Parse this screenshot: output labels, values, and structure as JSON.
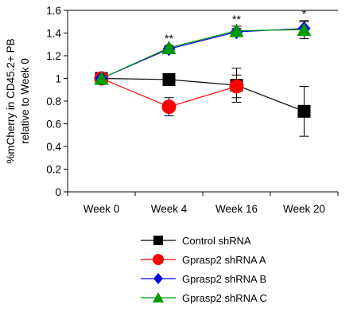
{
  "chart_data": {
    "type": "line",
    "title": "",
    "xlabel": "",
    "ylabel_lines": [
      "%mCherry in CD45.2+ PB",
      "relative to Week 0"
    ],
    "categories": [
      "Week 0",
      "Week 4",
      "Week 16",
      "Week 20"
    ],
    "ylim": [
      0,
      1.6
    ],
    "yticks": [
      "0",
      "0.2",
      "0.4",
      "0.6",
      "0.8",
      "1",
      "1.2",
      "1.4",
      "1.6"
    ],
    "grid": false,
    "legend_position": "bottom",
    "series": [
      {
        "name": "Control shRNA",
        "color": "#000000",
        "marker": "square",
        "values": [
          1.0,
          0.99,
          0.94,
          0.71
        ],
        "errors": [
          0,
          0.02,
          0.15,
          0.22
        ]
      },
      {
        "name": "Gprasp2 shRNA A",
        "color": "#ff0000",
        "marker": "circle",
        "values": [
          1.0,
          0.75,
          0.93,
          null
        ],
        "errors": [
          0,
          0.08,
          0.1,
          0
        ]
      },
      {
        "name": "Gprasp2 shRNA B",
        "color": "#0000ff",
        "marker": "diamond",
        "values": [
          1.0,
          1.26,
          1.41,
          1.44
        ],
        "errors": [
          0,
          0.02,
          0.03,
          0.06
        ]
      },
      {
        "name": "Gprasp2 shRNA C",
        "color": "#009900",
        "marker": "triangle",
        "values": [
          1.0,
          1.27,
          1.42,
          1.43
        ],
        "errors": [
          0,
          0.02,
          0.04,
          0.08
        ]
      }
    ],
    "annotations": [
      {
        "category": "Week 4",
        "text": "**"
      },
      {
        "category": "Week 16",
        "text": "**"
      },
      {
        "category": "Week 20",
        "text": "*"
      }
    ]
  }
}
